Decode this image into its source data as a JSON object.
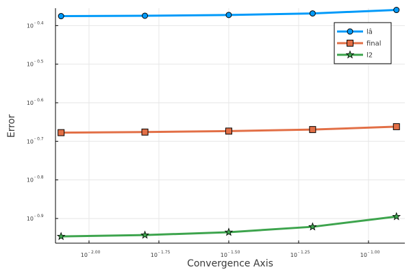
{
  "chart_data": {
    "type": "line",
    "xlabel": "Convergence Axis",
    "ylabel": "Error",
    "x_scale": "log10",
    "y_scale": "log10",
    "xlim_log10": [
      -2.12,
      -0.87
    ],
    "ylim_log10": [
      -0.964,
      -0.355
    ],
    "grid": true,
    "legend_position": "top-right",
    "x_ticks": [
      {
        "base": "10",
        "exp": "- 2.00",
        "log10": -2.0
      },
      {
        "base": "10",
        "exp": "- 1.75",
        "log10": -1.75
      },
      {
        "base": "10",
        "exp": "- 1.50",
        "log10": -1.5
      },
      {
        "base": "10",
        "exp": "- 1.25",
        "log10": -1.25
      },
      {
        "base": "10",
        "exp": "- 1.00",
        "log10": -1.0
      }
    ],
    "y_ticks": [
      {
        "base": "10",
        "exp": "- 0.9",
        "log10": -0.9
      },
      {
        "base": "10",
        "exp": "- 0.8",
        "log10": -0.8
      },
      {
        "base": "10",
        "exp": "- 0.7",
        "log10": -0.7
      },
      {
        "base": "10",
        "exp": "- 0.6",
        "log10": -0.6
      },
      {
        "base": "10",
        "exp": "- 0.5",
        "log10": -0.5
      },
      {
        "base": "10",
        "exp": "- 0.4",
        "log10": -0.4
      }
    ],
    "x_log10": [
      -2.1,
      -1.8,
      -1.5,
      -1.2,
      -0.9
    ],
    "series": [
      {
        "name": "lâ",
        "color": "#009af9",
        "marker": "circle",
        "y_log10": [
          -0.3755,
          -0.3745,
          -0.3725,
          -0.3685,
          -0.3595
        ]
      },
      {
        "name": "final",
        "color": "#e26f46",
        "marker": "square",
        "y_log10": [
          -0.6775,
          -0.676,
          -0.6735,
          -0.6695,
          -0.662
        ]
      },
      {
        "name": "l2",
        "color": "#3da44d",
        "marker": "star",
        "y_log10": [
          -0.9465,
          -0.943,
          -0.9355,
          -0.9215,
          -0.895
        ]
      }
    ]
  }
}
